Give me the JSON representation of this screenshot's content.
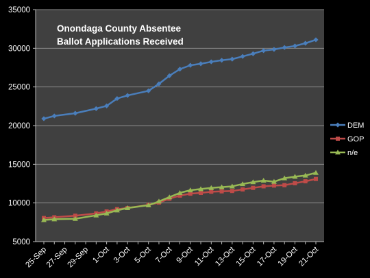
{
  "chart_data": {
    "type": "line",
    "title_lines": [
      "Onondaga County Absentee",
      "Ballot Applications Received"
    ],
    "xlabel": "",
    "ylabel": "",
    "ylim": [
      5000,
      35000
    ],
    "yticks": [
      5000,
      10000,
      15000,
      20000,
      25000,
      30000,
      35000
    ],
    "x_range": [
      "25-Sep",
      "21-Oct"
    ],
    "xtick_labels": [
      "25-Sep",
      "27-Sep",
      "29-Sep",
      "1-Oct",
      "3-Oct",
      "5-Oct",
      "7-Oct",
      "9-Oct",
      "11-Oct",
      "13-Oct",
      "15-Oct",
      "17-Oct",
      "19-Oct",
      "21-Oct"
    ],
    "grid": "horizontal",
    "legend_position": "right",
    "background_color": "#000000",
    "plot_area_color": "#404040",
    "x": [
      "25-Sep",
      "26-Sep",
      "28-Sep",
      "30-Sep",
      "1-Oct",
      "2-Oct",
      "3-Oct",
      "5-Oct",
      "6-Oct",
      "7-Oct",
      "8-Oct",
      "9-Oct",
      "10-Oct",
      "11-Oct",
      "12-Oct",
      "13-Oct",
      "14-Oct",
      "15-Oct",
      "16-Oct",
      "17-Oct",
      "18-Oct",
      "19-Oct",
      "20-Oct",
      "21-Oct"
    ],
    "series": [
      {
        "name": "DEM",
        "color": "#4A7EBB",
        "marker": "diamond",
        "values": [
          20900,
          21250,
          21600,
          22200,
          22550,
          23500,
          23900,
          24500,
          25400,
          26450,
          27300,
          27800,
          28000,
          28250,
          28450,
          28600,
          28950,
          29300,
          29700,
          29850,
          30100,
          30300,
          30650,
          31100
        ]
      },
      {
        "name": "GOP",
        "color": "#BE4B48",
        "marker": "square",
        "values": [
          8050,
          8150,
          8350,
          8650,
          8900,
          9200,
          9350,
          9750,
          10050,
          10550,
          10950,
          11200,
          11300,
          11450,
          11500,
          11550,
          11750,
          11950,
          12150,
          12250,
          12300,
          12550,
          12800,
          13100
        ]
      },
      {
        "name": "n/e",
        "color": "#98B954",
        "marker": "triangle",
        "values": [
          7800,
          7900,
          7950,
          8400,
          8650,
          9050,
          9350,
          9700,
          10200,
          10750,
          11300,
          11650,
          11800,
          11950,
          12050,
          12150,
          12450,
          12700,
          12900,
          12750,
          13200,
          13400,
          13550,
          13900
        ]
      }
    ]
  }
}
